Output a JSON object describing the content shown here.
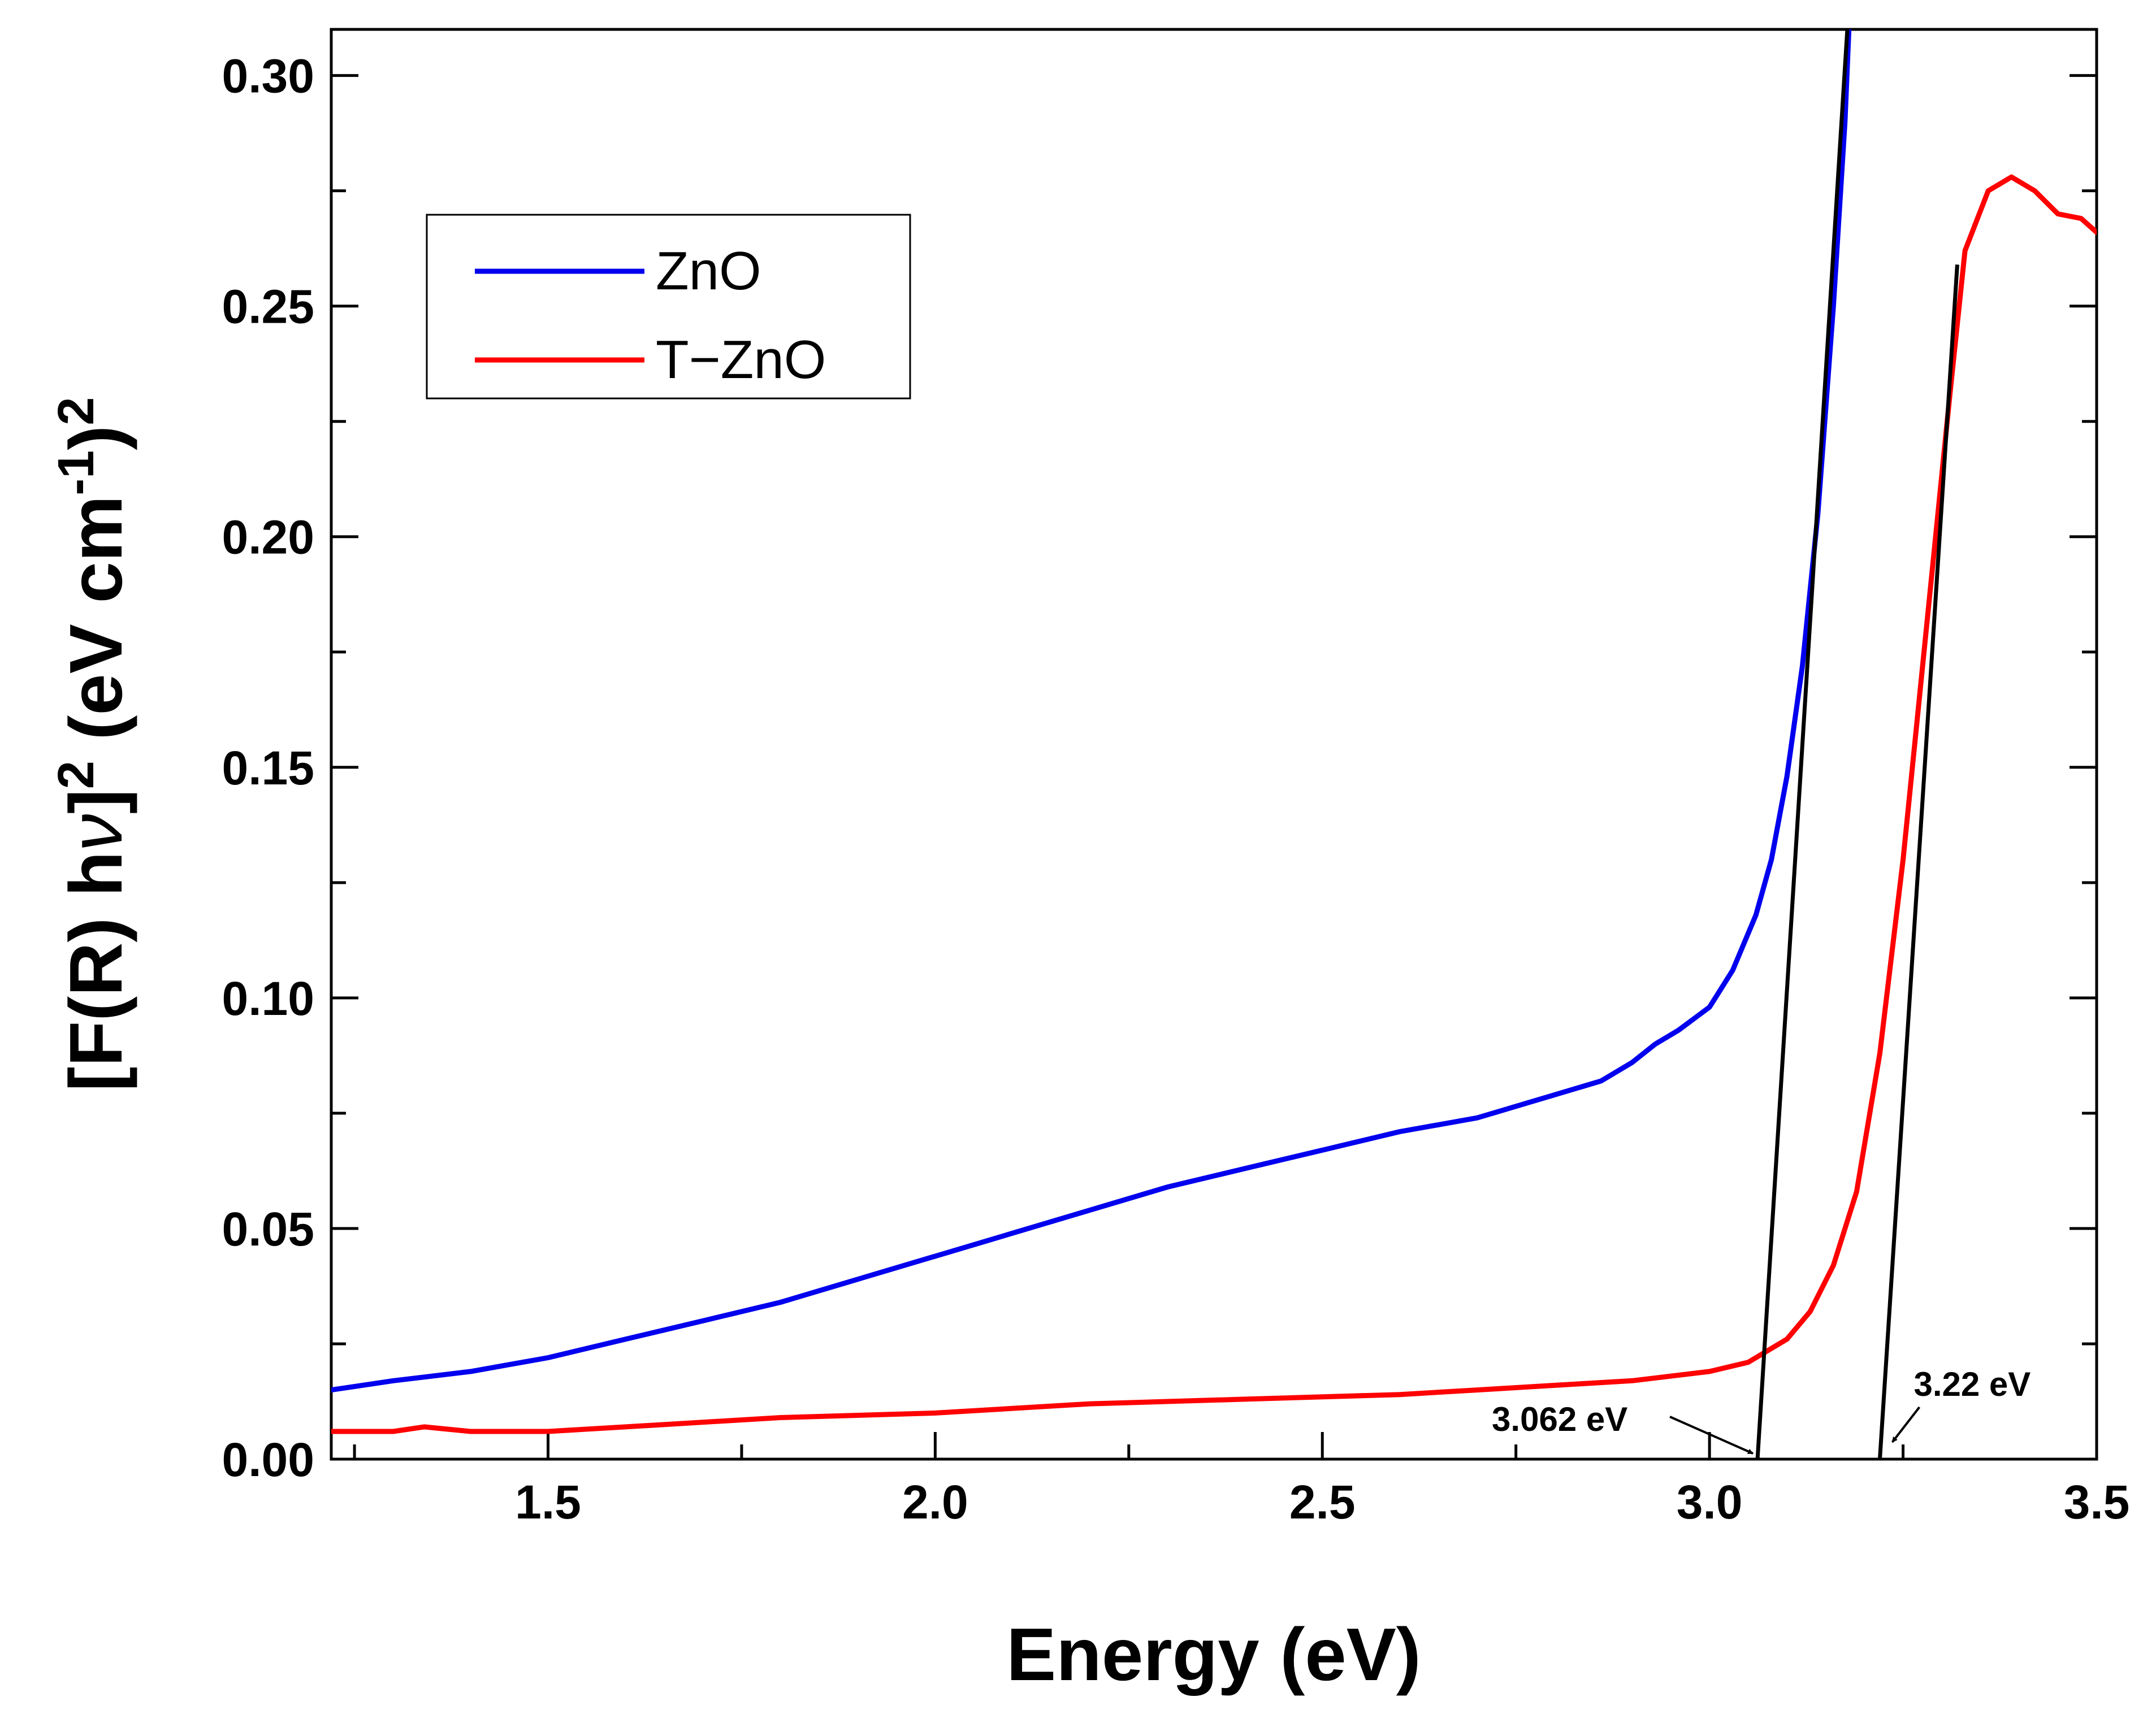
{
  "chart_data": {
    "type": "line",
    "title": "",
    "xlabel": "Energy (eV)",
    "ylabel": "[F(R) hν]² (eV cm⁻¹)²",
    "ylabel_parts": {
      "base": "[F(R) h",
      "nu": "ν",
      "close": "]",
      "sup1": "2",
      "unit": " (eV cm",
      "sup2": "-1",
      "close2": ")",
      "sup3": "2"
    },
    "xlim": [
      1.22,
      3.5
    ],
    "ylim": [
      0.0,
      0.31
    ],
    "x_ticks": [
      "1.5",
      "2.0",
      "2.5",
      "3.0",
      "3.5"
    ],
    "y_ticks": [
      "0.00",
      "0.05",
      "0.10",
      "0.15",
      "0.20",
      "0.25",
      "0.30"
    ],
    "legend_position": "upper-left",
    "series": [
      {
        "name": "ZnO",
        "color": "#0000ee",
        "x": [
          1.22,
          1.3,
          1.4,
          1.5,
          1.6,
          1.7,
          1.8,
          1.9,
          2.0,
          2.1,
          2.2,
          2.3,
          2.4,
          2.5,
          2.6,
          2.7,
          2.8,
          2.86,
          2.9,
          2.93,
          2.96,
          3.0,
          3.03,
          3.06,
          3.08,
          3.1,
          3.12,
          3.14,
          3.16,
          3.175,
          3.18
        ],
        "values": [
          0.015,
          0.017,
          0.019,
          0.022,
          0.026,
          0.03,
          0.034,
          0.039,
          0.044,
          0.049,
          0.054,
          0.059,
          0.063,
          0.067,
          0.071,
          0.074,
          0.079,
          0.082,
          0.086,
          0.09,
          0.093,
          0.098,
          0.106,
          0.118,
          0.13,
          0.148,
          0.172,
          0.205,
          0.25,
          0.29,
          0.31
        ]
      },
      {
        "name": "T−ZnO",
        "color": "#ff0000",
        "x": [
          1.22,
          1.3,
          1.34,
          1.4,
          1.46,
          1.5,
          1.6,
          1.8,
          2.0,
          2.2,
          2.4,
          2.6,
          2.7,
          2.8,
          2.9,
          3.0,
          3.05,
          3.1,
          3.13,
          3.16,
          3.19,
          3.22,
          3.25,
          3.28,
          3.31,
          3.33,
          3.36,
          3.39,
          3.42,
          3.45,
          3.48,
          3.5
        ],
        "values": [
          0.006,
          0.006,
          0.007,
          0.006,
          0.006,
          0.006,
          0.007,
          0.009,
          0.01,
          0.012,
          0.013,
          0.014,
          0.015,
          0.016,
          0.017,
          0.019,
          0.021,
          0.026,
          0.032,
          0.042,
          0.058,
          0.088,
          0.13,
          0.18,
          0.23,
          0.262,
          0.275,
          0.278,
          0.275,
          0.27,
          0.269,
          0.266
        ]
      }
    ],
    "tangent_lines": [
      {
        "x": [
          3.062,
          3.178
        ],
        "y": [
          0.0,
          0.31
        ]
      },
      {
        "x": [
          3.22,
          3.32
        ],
        "y": [
          0.0,
          0.259
        ]
      }
    ],
    "annotations": [
      {
        "text": "3.062 eV",
        "x": 3.062
      },
      {
        "text": "3.22 eV",
        "x": 3.22
      }
    ]
  }
}
